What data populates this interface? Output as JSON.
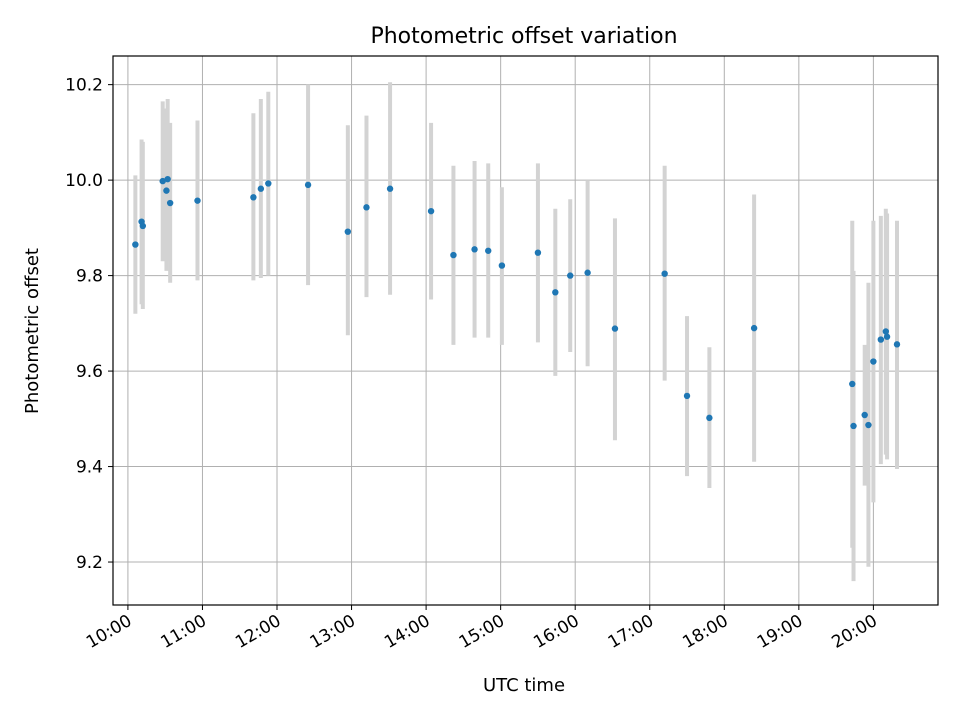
{
  "chart_data": {
    "type": "scatter",
    "title": "Photometric offset variation",
    "xlabel": "UTC time",
    "ylabel": "Photometric offset",
    "x_unit": "UTC hours",
    "xlim": [
      "09:48",
      "20:52"
    ],
    "ylim": [
      9.11,
      10.26
    ],
    "grid": true,
    "x_ticks": [
      {
        "value": "10:00",
        "label": "10:00"
      },
      {
        "value": "11:00",
        "label": "11:00"
      },
      {
        "value": "12:00",
        "label": "12:00"
      },
      {
        "value": "13:00",
        "label": "13:00"
      },
      {
        "value": "14:00",
        "label": "14:00"
      },
      {
        "value": "15:00",
        "label": "15:00"
      },
      {
        "value": "16:00",
        "label": "16:00"
      },
      {
        "value": "17:00",
        "label": "17:00"
      },
      {
        "value": "18:00",
        "label": "18:00"
      },
      {
        "value": "19:00",
        "label": "19:00"
      },
      {
        "value": "20:00",
        "label": "20:00"
      }
    ],
    "y_ticks": [
      {
        "value": 9.2,
        "label": "9.2"
      },
      {
        "value": 9.4,
        "label": "9.4"
      },
      {
        "value": 9.6,
        "label": "9.6"
      },
      {
        "value": 9.8,
        "label": "9.8"
      },
      {
        "value": 10.0,
        "label": "10.0"
      },
      {
        "value": 10.2,
        "label": "10.2"
      }
    ],
    "series": [
      {
        "marker_color": "#1f77b4",
        "errorbar_color": "#d3d3d3",
        "points": [
          {
            "x": "10:06",
            "y": 9.865,
            "ylow": 9.72,
            "yhigh": 10.01
          },
          {
            "x": "10:11",
            "y": 9.913,
            "ylow": 9.74,
            "yhigh": 10.085
          },
          {
            "x": "10:12",
            "y": 9.904,
            "ylow": 9.73,
            "yhigh": 10.08
          },
          {
            "x": "10:28",
            "y": 9.998,
            "ylow": 9.83,
            "yhigh": 10.165
          },
          {
            "x": "10:31",
            "y": 9.978,
            "ylow": 9.81,
            "yhigh": 10.15
          },
          {
            "x": "10:32",
            "y": 10.002,
            "ylow": 9.83,
            "yhigh": 10.17
          },
          {
            "x": "10:34",
            "y": 9.952,
            "ylow": 9.785,
            "yhigh": 10.12
          },
          {
            "x": "10:56",
            "y": 9.957,
            "ylow": 9.79,
            "yhigh": 10.125
          },
          {
            "x": "11:41",
            "y": 9.964,
            "ylow": 9.79,
            "yhigh": 10.14
          },
          {
            "x": "11:47",
            "y": 9.982,
            "ylow": 9.795,
            "yhigh": 10.17
          },
          {
            "x": "11:53",
            "y": 9.993,
            "ylow": 9.8,
            "yhigh": 10.185
          },
          {
            "x": "12:25",
            "y": 9.99,
            "ylow": 9.78,
            "yhigh": 10.2
          },
          {
            "x": "12:57",
            "y": 9.892,
            "ylow": 9.675,
            "yhigh": 10.115
          },
          {
            "x": "13:12",
            "y": 9.943,
            "ylow": 9.755,
            "yhigh": 10.135
          },
          {
            "x": "13:31",
            "y": 9.982,
            "ylow": 9.76,
            "yhigh": 10.205
          },
          {
            "x": "14:04",
            "y": 9.935,
            "ylow": 9.75,
            "yhigh": 10.12
          },
          {
            "x": "14:22",
            "y": 9.843,
            "ylow": 9.655,
            "yhigh": 10.03
          },
          {
            "x": "14:39",
            "y": 9.855,
            "ylow": 9.67,
            "yhigh": 10.04
          },
          {
            "x": "14:50",
            "y": 9.852,
            "ylow": 9.67,
            "yhigh": 10.035
          },
          {
            "x": "15:01",
            "y": 9.821,
            "ylow": 9.655,
            "yhigh": 9.985
          },
          {
            "x": "15:30",
            "y": 9.848,
            "ylow": 9.66,
            "yhigh": 10.035
          },
          {
            "x": "15:44",
            "y": 9.765,
            "ylow": 9.59,
            "yhigh": 9.94
          },
          {
            "x": "15:56",
            "y": 9.8,
            "ylow": 9.64,
            "yhigh": 9.96
          },
          {
            "x": "16:10",
            "y": 9.806,
            "ylow": 9.61,
            "yhigh": 10.0
          },
          {
            "x": "16:32",
            "y": 9.689,
            "ylow": 9.455,
            "yhigh": 9.92
          },
          {
            "x": "17:12",
            "y": 9.804,
            "ylow": 9.58,
            "yhigh": 10.03
          },
          {
            "x": "17:30",
            "y": 9.548,
            "ylow": 9.38,
            "yhigh": 9.715
          },
          {
            "x": "17:48",
            "y": 9.502,
            "ylow": 9.355,
            "yhigh": 9.65
          },
          {
            "x": "18:24",
            "y": 9.69,
            "ylow": 9.41,
            "yhigh": 9.97
          },
          {
            "x": "19:43",
            "y": 9.573,
            "ylow": 9.23,
            "yhigh": 9.915
          },
          {
            "x": "19:44",
            "y": 9.485,
            "ylow": 9.16,
            "yhigh": 9.81
          },
          {
            "x": "19:53",
            "y": 9.508,
            "ylow": 9.36,
            "yhigh": 9.655
          },
          {
            "x": "19:56",
            "y": 9.487,
            "ylow": 9.19,
            "yhigh": 9.785
          },
          {
            "x": "20:00",
            "y": 9.62,
            "ylow": 9.325,
            "yhigh": 9.915
          },
          {
            "x": "20:06",
            "y": 9.666,
            "ylow": 9.405,
            "yhigh": 9.925
          },
          {
            "x": "20:10",
            "y": 9.683,
            "ylow": 9.425,
            "yhigh": 9.94
          },
          {
            "x": "20:11",
            "y": 9.672,
            "ylow": 9.415,
            "yhigh": 9.93
          },
          {
            "x": "20:19",
            "y": 9.656,
            "ylow": 9.395,
            "yhigh": 9.915
          }
        ]
      }
    ]
  }
}
